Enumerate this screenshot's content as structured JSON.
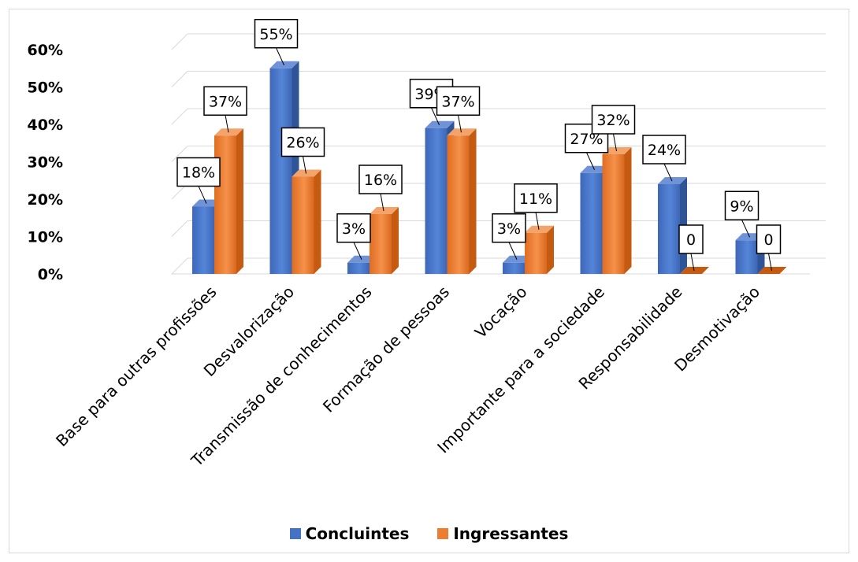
{
  "chart_data": {
    "type": "bar",
    "categories": [
      "Base para outras profissões",
      "Desvalorização",
      "Transmissão de conhecimentos",
      "Formação de pessoas",
      "Vocação",
      "Importante para a sociedade",
      "Responsabilidade",
      "Desmotivação"
    ],
    "series": [
      {
        "name": "Concluintes",
        "values": [
          18,
          55,
          3,
          39,
          3,
          27,
          24,
          9
        ],
        "labels": [
          "18%",
          "55%",
          "3%",
          "39%",
          "3%",
          "27%",
          "24%",
          "9%"
        ],
        "color": "#4472c4"
      },
      {
        "name": "Ingressantes",
        "values": [
          37,
          26,
          16,
          37,
          11,
          32,
          0,
          0
        ],
        "labels": [
          "37%",
          "26%",
          "16%",
          "37%",
          "11%",
          "32%",
          "0",
          "0"
        ],
        "color": "#ed7d31"
      }
    ],
    "yticks": [
      "0%",
      "10%",
      "20%",
      "30%",
      "40%",
      "50%",
      "60%"
    ],
    "ylim": [
      0,
      60
    ],
    "grid": true,
    "legend_position": "bottom"
  }
}
